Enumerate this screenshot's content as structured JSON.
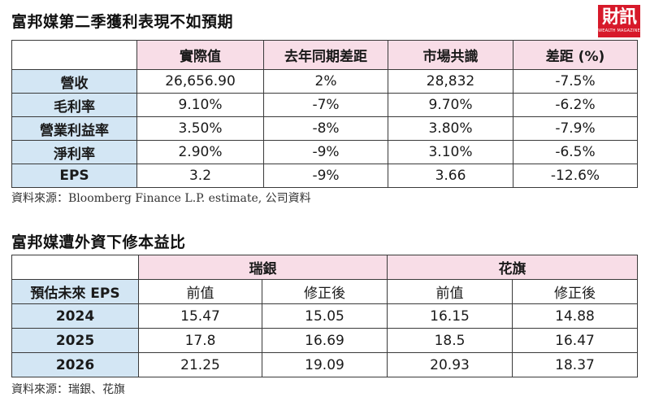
{
  "section1": {
    "title": "富邦媒第二季獲利表現不如預期",
    "columns": [
      "實際值",
      "去年同期差距",
      "市場共識",
      "差距 (%)"
    ],
    "rows": [
      {
        "label": "營收",
        "values": [
          "26,656.90",
          "2%",
          "28,832",
          "-7.5%"
        ]
      },
      {
        "label": "毛利率",
        "values": [
          "9.10%",
          "-7%",
          "9.70%",
          "-6.2%"
        ]
      },
      {
        "label": "營業利益率",
        "values": [
          "3.50%",
          "-8%",
          "3.80%",
          "-7.9%"
        ]
      },
      {
        "label": "淨利率",
        "values": [
          "2.90%",
          "-9%",
          "3.10%",
          "-6.5%"
        ]
      },
      {
        "label": "EPS",
        "values": [
          "3.2",
          "-9%",
          "3.66",
          "-12.6%"
        ]
      }
    ],
    "source": "資料來源：Bloomberg Finance L.P. estimate, 公司資料"
  },
  "section2": {
    "title": "富邦媒遭外資下修本益比",
    "groups": [
      "瑞銀",
      "花旗"
    ],
    "row_header": "預估未來 EPS",
    "subcolumns": [
      "前值",
      "修正後",
      "前值",
      "修正後"
    ],
    "rows": [
      {
        "label": "2024",
        "values": [
          "15.47",
          "15.05",
          "16.15",
          "14.88"
        ]
      },
      {
        "label": "2025",
        "values": [
          "17.8",
          "16.69",
          "18.5",
          "16.47"
        ]
      },
      {
        "label": "2026",
        "values": [
          "21.25",
          "19.09",
          "20.93",
          "18.37"
        ]
      }
    ],
    "source": "資料來源：瑞銀、花旗"
  },
  "logo": {
    "mark": "財訊",
    "sub": "WEALTH MAGAZINE"
  }
}
